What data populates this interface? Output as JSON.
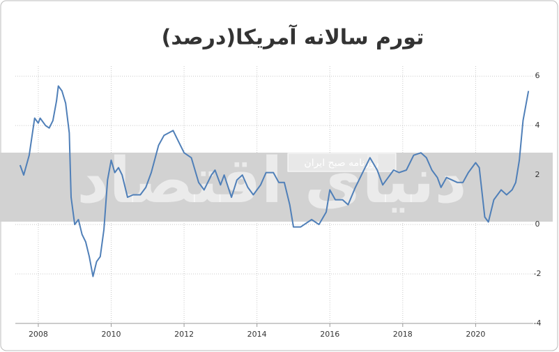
{
  "chart_data": {
    "type": "line",
    "title": "تورم سالانه آمریکا(درصد)",
    "watermark": "روزنامه صبح ایران",
    "logo": "دنیای اقتصاد",
    "xlim": [
      2007.37,
      2021.58
    ],
    "ylim": [
      -4,
      6.4
    ],
    "xticks": [
      2008,
      2010,
      2012,
      2014,
      2016,
      2018,
      2020
    ],
    "yticks": [
      -4,
      -2,
      0,
      2,
      4,
      6
    ],
    "grid": true,
    "x": [
      2007.5,
      2007.6,
      2007.75,
      2007.9,
      2008.0,
      2008.05,
      2008.2,
      2008.3,
      2008.4,
      2008.5,
      2008.55,
      2008.65,
      2008.75,
      2008.85,
      2008.9,
      2009.0,
      2009.1,
      2009.2,
      2009.3,
      2009.4,
      2009.5,
      2009.6,
      2009.7,
      2009.8,
      2009.9,
      2010.0,
      2010.1,
      2010.2,
      2010.3,
      2010.45,
      2010.6,
      2010.8,
      2010.95,
      2011.1,
      2011.3,
      2011.45,
      2011.7,
      2011.8,
      2012.0,
      2012.2,
      2012.4,
      2012.55,
      2012.75,
      2012.85,
      2013.0,
      2013.1,
      2013.3,
      2013.45,
      2013.6,
      2013.75,
      2013.9,
      2014.1,
      2014.25,
      2014.45,
      2014.6,
      2014.75,
      2014.9,
      2015.0,
      2015.2,
      2015.3,
      2015.5,
      2015.7,
      2015.9,
      2016.0,
      2016.15,
      2016.35,
      2016.5,
      2016.7,
      2016.9,
      2017.1,
      2017.3,
      2017.45,
      2017.6,
      2017.75,
      2017.9,
      2018.1,
      2018.3,
      2018.5,
      2018.65,
      2018.8,
      2018.95,
      2019.05,
      2019.2,
      2019.35,
      2019.5,
      2019.65,
      2019.8,
      2020.0,
      2020.1,
      2020.25,
      2020.35,
      2020.5,
      2020.7,
      2020.85,
      2021.0,
      2021.1,
      2021.2,
      2021.3,
      2021.4,
      2021.45
    ],
    "series": [
      {
        "color": "#4f7fb8",
        "values": [
          2.4,
          2.0,
          2.8,
          4.3,
          4.1,
          4.3,
          4.0,
          3.9,
          4.2,
          5.0,
          5.6,
          5.4,
          4.9,
          3.7,
          1.1,
          0.0,
          0.2,
          -0.4,
          -0.7,
          -1.3,
          -2.1,
          -1.5,
          -1.3,
          -0.2,
          1.8,
          2.6,
          2.1,
          2.3,
          2.0,
          1.1,
          1.2,
          1.2,
          1.5,
          2.1,
          3.2,
          3.6,
          3.8,
          3.5,
          2.9,
          2.7,
          1.7,
          1.4,
          2.0,
          2.2,
          1.6,
          2.0,
          1.1,
          1.8,
          2.0,
          1.5,
          1.2,
          1.6,
          2.1,
          2.1,
          1.7,
          1.7,
          0.8,
          -0.1,
          -0.1,
          0.0,
          0.2,
          0.0,
          0.5,
          1.4,
          1.0,
          1.0,
          0.8,
          1.5,
          2.1,
          2.7,
          2.2,
          1.6,
          1.9,
          2.2,
          2.1,
          2.2,
          2.8,
          2.9,
          2.7,
          2.2,
          1.9,
          1.5,
          1.9,
          1.8,
          1.7,
          1.7,
          2.1,
          2.5,
          2.3,
          0.3,
          0.1,
          1.0,
          1.4,
          1.2,
          1.4,
          1.7,
          2.6,
          4.2,
          5.0,
          5.4
        ]
      }
    ]
  }
}
